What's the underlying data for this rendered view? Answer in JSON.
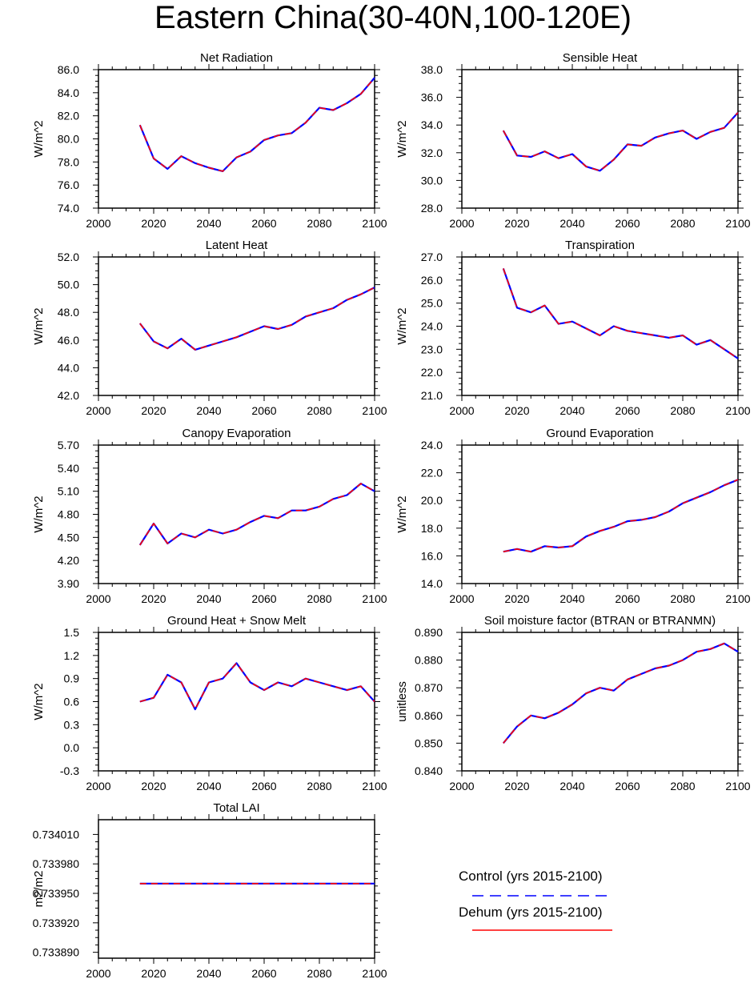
{
  "title": "Eastern China(30-40N,100-120E)",
  "colors": {
    "control": "#0000ff",
    "dehum": "#ff0000",
    "axis": "#000000"
  },
  "legend": [
    {
      "label": "Control (yrs 2015-2100)",
      "color": "#0000ff",
      "style": "dashed"
    },
    {
      "label": "Dehum (yrs 2015-2100)",
      "color": "#ff0000",
      "style": "solid"
    }
  ],
  "chart_data": [
    {
      "type": "line",
      "title": "Net Radiation",
      "ylabel": "W/m^2",
      "xlabel": "",
      "xlim": [
        2000,
        2100
      ],
      "ylim": [
        74,
        86
      ],
      "xticks": [
        2000,
        2020,
        2040,
        2060,
        2080,
        2100
      ],
      "yticks": [
        "74.0",
        "76.0",
        "78.0",
        "80.0",
        "82.0",
        "84.0",
        "86.0"
      ],
      "x": [
        2015,
        2020,
        2025,
        2030,
        2035,
        2040,
        2045,
        2050,
        2055,
        2060,
        2065,
        2070,
        2075,
        2080,
        2085,
        2090,
        2095,
        2100
      ],
      "series": [
        {
          "name": "Control",
          "values": [
            81.2,
            78.3,
            77.4,
            78.5,
            77.9,
            77.5,
            77.2,
            78.4,
            78.9,
            79.9,
            80.3,
            80.5,
            81.4,
            82.7,
            82.5,
            83.1,
            83.9,
            85.3
          ]
        },
        {
          "name": "Dehum",
          "values": [
            81.2,
            78.3,
            77.4,
            78.5,
            77.9,
            77.5,
            77.2,
            78.4,
            78.9,
            79.9,
            80.3,
            80.5,
            81.4,
            82.7,
            82.5,
            83.1,
            83.9,
            85.3
          ]
        }
      ]
    },
    {
      "type": "line",
      "title": "Sensible Heat",
      "ylabel": "W/m^2",
      "xlabel": "",
      "xlim": [
        2000,
        2100
      ],
      "ylim": [
        28,
        38
      ],
      "xticks": [
        2000,
        2020,
        2040,
        2060,
        2080,
        2100
      ],
      "yticks": [
        "28.0",
        "30.0",
        "32.0",
        "34.0",
        "36.0",
        "38.0"
      ],
      "x": [
        2015,
        2020,
        2025,
        2030,
        2035,
        2040,
        2045,
        2050,
        2055,
        2060,
        2065,
        2070,
        2075,
        2080,
        2085,
        2090,
        2095,
        2100
      ],
      "series": [
        {
          "name": "Control",
          "values": [
            33.6,
            31.8,
            31.7,
            32.1,
            31.6,
            31.9,
            31.0,
            30.7,
            31.5,
            32.6,
            32.5,
            33.1,
            33.4,
            33.6,
            33.0,
            33.5,
            33.8,
            34.9
          ]
        },
        {
          "name": "Dehum",
          "values": [
            33.6,
            31.8,
            31.7,
            32.1,
            31.6,
            31.9,
            31.0,
            30.7,
            31.5,
            32.6,
            32.5,
            33.1,
            33.4,
            33.6,
            33.0,
            33.5,
            33.8,
            34.9
          ]
        }
      ]
    },
    {
      "type": "line",
      "title": "Latent Heat",
      "ylabel": "W/m^2",
      "xlabel": "",
      "xlim": [
        2000,
        2100
      ],
      "ylim": [
        42,
        52
      ],
      "xticks": [
        2000,
        2020,
        2040,
        2060,
        2080,
        2100
      ],
      "yticks": [
        "42.0",
        "44.0",
        "46.0",
        "48.0",
        "50.0",
        "52.0"
      ],
      "x": [
        2015,
        2020,
        2025,
        2030,
        2035,
        2040,
        2045,
        2050,
        2055,
        2060,
        2065,
        2070,
        2075,
        2080,
        2085,
        2090,
        2095,
        2100
      ],
      "series": [
        {
          "name": "Control",
          "values": [
            47.2,
            45.9,
            45.4,
            46.1,
            45.3,
            45.6,
            45.9,
            46.2,
            46.6,
            47.0,
            46.8,
            47.1,
            47.7,
            48.0,
            48.3,
            48.9,
            49.3,
            49.8
          ]
        },
        {
          "name": "Dehum",
          "values": [
            47.2,
            45.9,
            45.4,
            46.1,
            45.3,
            45.6,
            45.9,
            46.2,
            46.6,
            47.0,
            46.8,
            47.1,
            47.7,
            48.0,
            48.3,
            48.9,
            49.3,
            49.8
          ]
        }
      ]
    },
    {
      "type": "line",
      "title": "Transpiration",
      "ylabel": "W/m^2",
      "xlabel": "",
      "xlim": [
        2000,
        2100
      ],
      "ylim": [
        21,
        27
      ],
      "xticks": [
        2000,
        2020,
        2040,
        2060,
        2080,
        2100
      ],
      "yticks": [
        "21.0",
        "22.0",
        "23.0",
        "24.0",
        "25.0",
        "26.0",
        "27.0"
      ],
      "x": [
        2015,
        2020,
        2025,
        2030,
        2035,
        2040,
        2045,
        2050,
        2055,
        2060,
        2065,
        2070,
        2075,
        2080,
        2085,
        2090,
        2095,
        2100
      ],
      "series": [
        {
          "name": "Control",
          "values": [
            26.5,
            24.8,
            24.6,
            24.9,
            24.1,
            24.2,
            23.9,
            23.6,
            24.0,
            23.8,
            23.7,
            23.6,
            23.5,
            23.6,
            23.2,
            23.4,
            23.0,
            22.6
          ]
        },
        {
          "name": "Dehum",
          "values": [
            26.5,
            24.8,
            24.6,
            24.9,
            24.1,
            24.2,
            23.9,
            23.6,
            24.0,
            23.8,
            23.7,
            23.6,
            23.5,
            23.6,
            23.2,
            23.4,
            23.0,
            22.6
          ]
        }
      ]
    },
    {
      "type": "line",
      "title": "Canopy Evaporation",
      "ylabel": "W/m^2",
      "xlabel": "",
      "xlim": [
        2000,
        2100
      ],
      "ylim": [
        3.9,
        5.7
      ],
      "xticks": [
        2000,
        2020,
        2040,
        2060,
        2080,
        2100
      ],
      "yticks": [
        "3.90",
        "4.20",
        "4.50",
        "4.80",
        "5.10",
        "5.40",
        "5.70"
      ],
      "x": [
        2015,
        2020,
        2025,
        2030,
        2035,
        2040,
        2045,
        2050,
        2055,
        2060,
        2065,
        2070,
        2075,
        2080,
        2085,
        2090,
        2095,
        2100
      ],
      "series": [
        {
          "name": "Control",
          "values": [
            4.4,
            4.68,
            4.42,
            4.55,
            4.5,
            4.6,
            4.55,
            4.6,
            4.7,
            4.78,
            4.75,
            4.85,
            4.85,
            4.9,
            5.0,
            5.05,
            5.2,
            5.1
          ]
        },
        {
          "name": "Dehum",
          "values": [
            4.4,
            4.68,
            4.42,
            4.55,
            4.5,
            4.6,
            4.55,
            4.6,
            4.7,
            4.78,
            4.75,
            4.85,
            4.85,
            4.9,
            5.0,
            5.05,
            5.2,
            5.1
          ]
        }
      ]
    },
    {
      "type": "line",
      "title": "Ground Evaporation",
      "ylabel": "W/m^2",
      "xlabel": "",
      "xlim": [
        2000,
        2100
      ],
      "ylim": [
        14,
        24
      ],
      "xticks": [
        2000,
        2020,
        2040,
        2060,
        2080,
        2100
      ],
      "yticks": [
        "14.0",
        "16.0",
        "18.0",
        "20.0",
        "22.0",
        "24.0"
      ],
      "x": [
        2015,
        2020,
        2025,
        2030,
        2035,
        2040,
        2045,
        2050,
        2055,
        2060,
        2065,
        2070,
        2075,
        2080,
        2085,
        2090,
        2095,
        2100
      ],
      "series": [
        {
          "name": "Control",
          "values": [
            16.3,
            16.5,
            16.3,
            16.7,
            16.6,
            16.7,
            17.4,
            17.8,
            18.1,
            18.5,
            18.6,
            18.8,
            19.2,
            19.8,
            20.2,
            20.6,
            21.1,
            21.5
          ]
        },
        {
          "name": "Dehum",
          "values": [
            16.3,
            16.5,
            16.3,
            16.7,
            16.6,
            16.7,
            17.4,
            17.8,
            18.1,
            18.5,
            18.6,
            18.8,
            19.2,
            19.8,
            20.2,
            20.6,
            21.1,
            21.5
          ]
        }
      ]
    },
    {
      "type": "line",
      "title": "Ground Heat + Snow Melt",
      "ylabel": "W/m^2",
      "xlabel": "",
      "xlim": [
        2000,
        2100
      ],
      "ylim": [
        -0.3,
        1.5
      ],
      "xticks": [
        2000,
        2020,
        2040,
        2060,
        2080,
        2100
      ],
      "yticks": [
        "-0.3",
        "0.0",
        "0.3",
        "0.6",
        "0.9",
        "1.2",
        "1.5"
      ],
      "x": [
        2015,
        2020,
        2025,
        2030,
        2035,
        2040,
        2045,
        2050,
        2055,
        2060,
        2065,
        2070,
        2075,
        2080,
        2085,
        2090,
        2095,
        2100
      ],
      "series": [
        {
          "name": "Control",
          "values": [
            0.6,
            0.65,
            0.95,
            0.85,
            0.5,
            0.85,
            0.9,
            1.1,
            0.85,
            0.75,
            0.85,
            0.8,
            0.9,
            0.85,
            0.8,
            0.75,
            0.8,
            0.6
          ]
        },
        {
          "name": "Dehum",
          "values": [
            0.6,
            0.65,
            0.95,
            0.85,
            0.5,
            0.85,
            0.9,
            1.1,
            0.85,
            0.75,
            0.85,
            0.8,
            0.9,
            0.85,
            0.8,
            0.75,
            0.8,
            0.6
          ]
        }
      ]
    },
    {
      "type": "line",
      "title": "Soil moisture factor (BTRAN or BTRANMN)",
      "ylabel": "unitless",
      "xlabel": "",
      "xlim": [
        2000,
        2100
      ],
      "ylim": [
        0.84,
        0.89
      ],
      "xticks": [
        2000,
        2020,
        2040,
        2060,
        2080,
        2100
      ],
      "yticks": [
        "0.840",
        "0.850",
        "0.860",
        "0.870",
        "0.880",
        "0.890"
      ],
      "x": [
        2015,
        2020,
        2025,
        2030,
        2035,
        2040,
        2045,
        2050,
        2055,
        2060,
        2065,
        2070,
        2075,
        2080,
        2085,
        2090,
        2095,
        2100
      ],
      "series": [
        {
          "name": "Control",
          "values": [
            0.85,
            0.856,
            0.86,
            0.859,
            0.861,
            0.864,
            0.868,
            0.87,
            0.869,
            0.873,
            0.875,
            0.877,
            0.878,
            0.88,
            0.883,
            0.884,
            0.886,
            0.883
          ]
        },
        {
          "name": "Dehum",
          "values": [
            0.85,
            0.856,
            0.86,
            0.859,
            0.861,
            0.864,
            0.868,
            0.87,
            0.869,
            0.873,
            0.875,
            0.877,
            0.878,
            0.88,
            0.883,
            0.884,
            0.886,
            0.883
          ]
        }
      ]
    },
    {
      "type": "line",
      "title": "Total LAI",
      "ylabel": "m2/m2",
      "xlabel": "",
      "xlim": [
        2000,
        2100
      ],
      "ylim": [
        0.733884,
        0.734025
      ],
      "xticks": [
        2000,
        2020,
        2040,
        2060,
        2080,
        2100
      ],
      "yticks": [
        "0.733890",
        "0.733920",
        "0.733950",
        "0.733980",
        "0.734010"
      ],
      "x": [
        2015,
        2100
      ],
      "series": [
        {
          "name": "Control",
          "values": [
            0.73396,
            0.73396
          ]
        },
        {
          "name": "Dehum",
          "values": [
            0.73396,
            0.73396
          ]
        }
      ]
    }
  ]
}
